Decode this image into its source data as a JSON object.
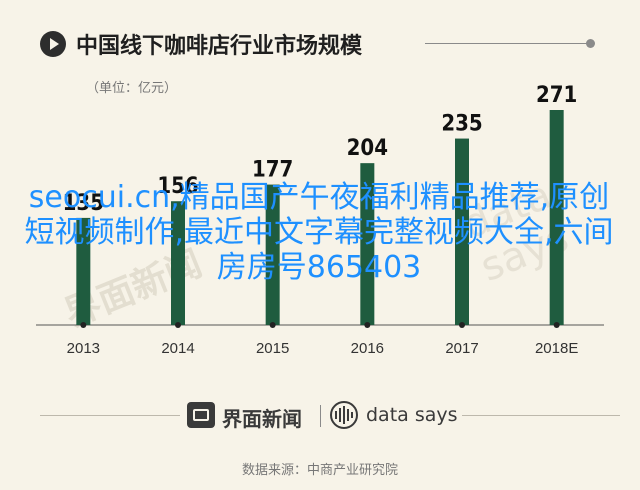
{
  "title": "中国线下咖啡店行业市场规模",
  "unit_label": "（单位：亿元）",
  "overlay_text": "seocui.cn,精品国产午夜福利精品推荐,原创短视频制作,最近中文字幕完整视频大全,六间房房号865403",
  "watermark_en": "data says",
  "watermark_cn": "界面新闻",
  "footer": {
    "brand1": "界面新闻",
    "brand2": "data says"
  },
  "source": "数据来源：中商产业研究院",
  "colors": {
    "bar": "#1f5c3f",
    "background": "#f7f3e8",
    "overlay": "#1e90ff"
  },
  "chart_data": {
    "type": "bar",
    "categories": [
      "2013",
      "2014",
      "2015",
      "2016",
      "2017",
      "2018E"
    ],
    "values": [
      135,
      156,
      177,
      204,
      235,
      271
    ],
    "title": "中国线下咖啡店行业市场规模",
    "xlabel": "",
    "ylabel": "",
    "ylim": [
      0,
      271
    ],
    "grid": false,
    "legend": "none"
  }
}
